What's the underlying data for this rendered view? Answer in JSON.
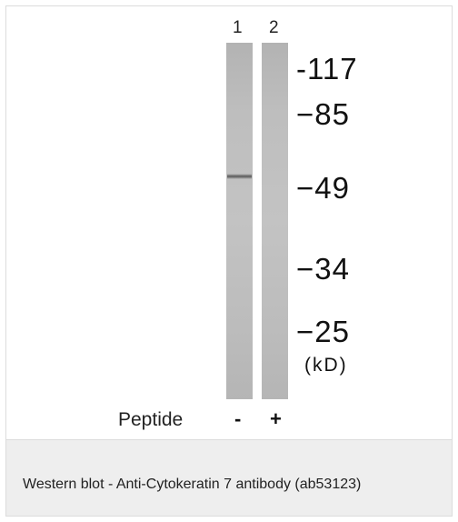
{
  "figure": {
    "lanes": [
      {
        "number": "1",
        "peptide": "-"
      },
      {
        "number": "2",
        "peptide": "+"
      }
    ],
    "markers": [
      "-117",
      "−85",
      "−49",
      "−34",
      "−25"
    ],
    "unit": "(kD)",
    "peptide_label": "Peptide"
  },
  "caption": "Western blot - Anti-Cytokeratin 7 antibody (ab53123)"
}
